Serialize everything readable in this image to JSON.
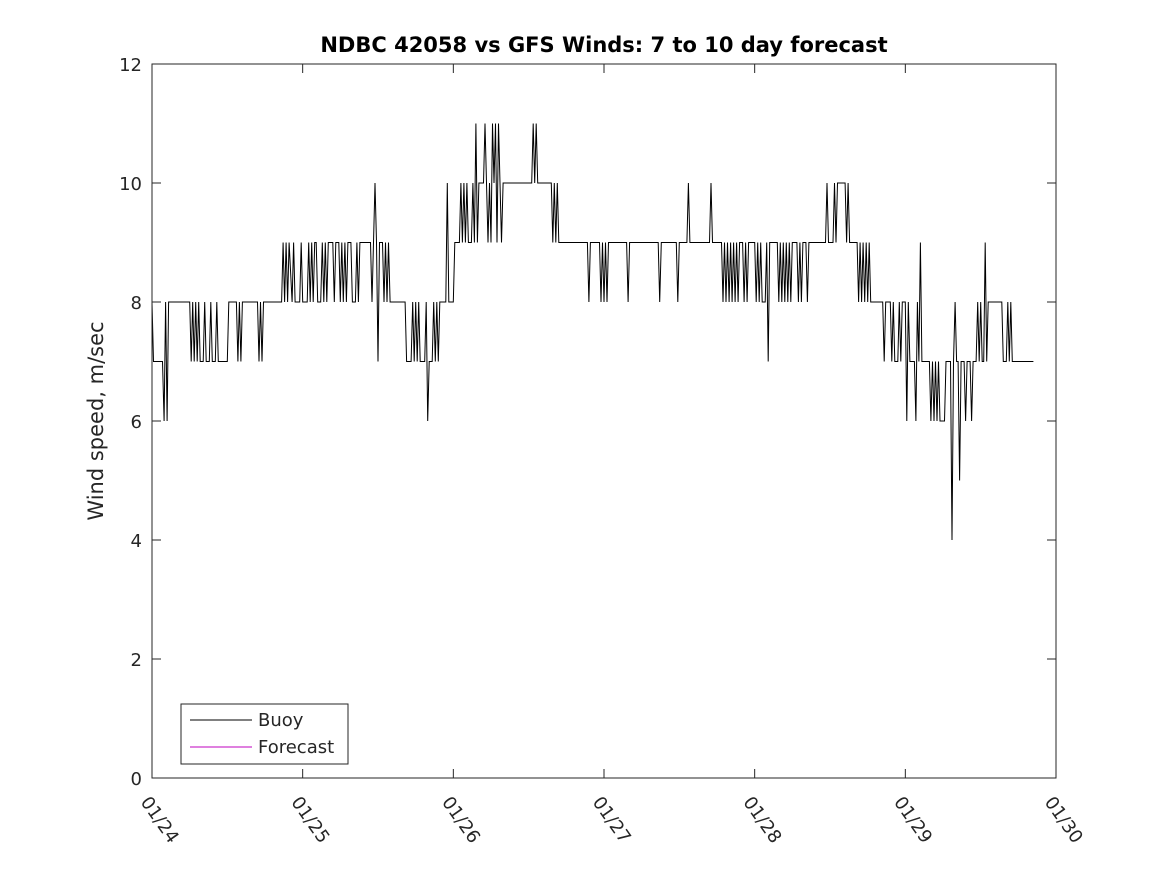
{
  "chart_data": {
    "type": "line",
    "title": "NDBC 42058 vs GFS Winds: 7 to 10 day forecast",
    "xlabel": "",
    "ylabel": "Wind speed, m/sec",
    "xlim": [
      0,
      6
    ],
    "ylim": [
      0,
      12
    ],
    "x_ticks": [
      {
        "value": 0,
        "label": "01/24"
      },
      {
        "value": 1,
        "label": "01/25"
      },
      {
        "value": 2,
        "label": "01/26"
      },
      {
        "value": 3,
        "label": "01/27"
      },
      {
        "value": 4,
        "label": "01/28"
      },
      {
        "value": 5,
        "label": "01/29"
      },
      {
        "value": 6,
        "label": "01/30"
      }
    ],
    "y_ticks": [
      0,
      2,
      4,
      6,
      8,
      10,
      12
    ],
    "grid": false,
    "legend_position": "bottom-left",
    "series": [
      {
        "name": "Buoy",
        "color": "#000000",
        "x_unit": "days since 01/24 00:00",
        "points": [
          [
            0.0,
            8
          ],
          [
            0.01,
            7
          ],
          [
            0.07,
            7
          ],
          [
            0.08,
            6
          ],
          [
            0.09,
            8
          ],
          [
            0.1,
            6
          ],
          [
            0.11,
            8
          ],
          [
            0.14,
            8
          ],
          [
            0.25,
            8
          ],
          [
            0.26,
            7
          ],
          [
            0.27,
            8
          ],
          [
            0.28,
            7
          ],
          [
            0.29,
            8
          ],
          [
            0.3,
            7
          ],
          [
            0.31,
            8
          ],
          [
            0.32,
            7
          ],
          [
            0.34,
            7
          ],
          [
            0.35,
            8
          ],
          [
            0.36,
            7
          ],
          [
            0.38,
            7
          ],
          [
            0.39,
            8
          ],
          [
            0.4,
            7
          ],
          [
            0.42,
            7
          ],
          [
            0.43,
            8
          ],
          [
            0.44,
            7
          ],
          [
            0.5,
            7
          ],
          [
            0.51,
            8
          ],
          [
            0.56,
            8
          ],
          [
            0.57,
            7
          ],
          [
            0.58,
            8
          ],
          [
            0.59,
            7
          ],
          [
            0.6,
            8
          ],
          [
            0.7,
            8
          ],
          [
            0.71,
            7
          ],
          [
            0.72,
            8
          ],
          [
            0.73,
            7
          ],
          [
            0.74,
            8
          ],
          [
            0.86,
            8
          ],
          [
            0.87,
            9
          ],
          [
            0.88,
            8
          ],
          [
            0.89,
            9
          ],
          [
            0.9,
            8
          ],
          [
            0.91,
            9
          ],
          [
            0.93,
            8
          ],
          [
            0.94,
            9
          ],
          [
            0.95,
            8
          ],
          [
            0.98,
            8
          ],
          [
            0.99,
            9
          ],
          [
            1.0,
            8
          ],
          [
            1.03,
            8
          ],
          [
            1.04,
            9
          ],
          [
            1.05,
            8
          ],
          [
            1.06,
            9
          ],
          [
            1.07,
            8
          ],
          [
            1.08,
            9
          ],
          [
            1.09,
            9
          ],
          [
            1.1,
            8
          ],
          [
            1.12,
            8
          ],
          [
            1.13,
            9
          ],
          [
            1.14,
            8
          ],
          [
            1.15,
            9
          ],
          [
            1.16,
            8
          ],
          [
            1.17,
            9
          ],
          [
            1.2,
            9
          ],
          [
            1.21,
            8
          ],
          [
            1.22,
            9
          ],
          [
            1.24,
            9
          ],
          [
            1.25,
            8
          ],
          [
            1.26,
            9
          ],
          [
            1.27,
            8
          ],
          [
            1.28,
            9
          ],
          [
            1.29,
            8
          ],
          [
            1.3,
            9
          ],
          [
            1.32,
            9
          ],
          [
            1.33,
            8
          ],
          [
            1.35,
            8
          ],
          [
            1.36,
            9
          ],
          [
            1.37,
            8
          ],
          [
            1.38,
            9
          ],
          [
            1.45,
            9
          ],
          [
            1.46,
            8
          ],
          [
            1.47,
            9
          ],
          [
            1.48,
            10
          ],
          [
            1.49,
            9
          ],
          [
            1.5,
            7
          ],
          [
            1.51,
            9
          ],
          [
            1.53,
            9
          ],
          [
            1.54,
            8
          ],
          [
            1.55,
            9
          ],
          [
            1.56,
            8
          ],
          [
            1.57,
            9
          ],
          [
            1.58,
            8
          ],
          [
            1.68,
            8
          ],
          [
            1.69,
            7
          ],
          [
            1.72,
            7
          ],
          [
            1.73,
            8
          ],
          [
            1.74,
            7
          ],
          [
            1.75,
            8
          ],
          [
            1.76,
            7
          ],
          [
            1.77,
            8
          ],
          [
            1.78,
            7
          ],
          [
            1.81,
            7
          ],
          [
            1.82,
            8
          ],
          [
            1.83,
            6
          ],
          [
            1.84,
            7
          ],
          [
            1.86,
            7
          ],
          [
            1.87,
            8
          ],
          [
            1.88,
            7
          ],
          [
            1.89,
            8
          ],
          [
            1.9,
            7
          ],
          [
            1.91,
            8
          ],
          [
            1.95,
            8
          ],
          [
            1.96,
            10
          ],
          [
            1.97,
            8
          ],
          [
            2.0,
            8
          ],
          [
            2.01,
            9
          ],
          [
            2.04,
            9
          ],
          [
            2.05,
            10
          ],
          [
            2.06,
            9
          ],
          [
            2.07,
            10
          ],
          [
            2.08,
            9
          ],
          [
            2.09,
            10
          ],
          [
            2.1,
            9
          ],
          [
            2.12,
            9
          ],
          [
            2.13,
            10
          ],
          [
            2.14,
            9
          ],
          [
            2.15,
            11
          ],
          [
            2.16,
            9
          ],
          [
            2.17,
            10
          ],
          [
            2.2,
            10
          ],
          [
            2.21,
            11
          ],
          [
            2.22,
            10
          ],
          [
            2.23,
            9
          ],
          [
            2.24,
            10
          ],
          [
            2.25,
            9
          ],
          [
            2.26,
            11
          ],
          [
            2.27,
            10
          ],
          [
            2.28,
            11
          ],
          [
            2.29,
            9
          ],
          [
            2.3,
            11
          ],
          [
            2.31,
            10
          ],
          [
            2.32,
            9
          ],
          [
            2.33,
            10
          ],
          [
            2.52,
            10
          ],
          [
            2.53,
            11
          ],
          [
            2.54,
            10
          ],
          [
            2.55,
            11
          ],
          [
            2.56,
            10
          ],
          [
            2.65,
            10
          ],
          [
            2.66,
            9
          ],
          [
            2.67,
            10
          ],
          [
            2.68,
            9
          ],
          [
            2.69,
            10
          ],
          [
            2.7,
            9
          ],
          [
            2.89,
            9
          ],
          [
            2.9,
            8
          ],
          [
            2.91,
            9
          ],
          [
            2.97,
            9
          ],
          [
            2.98,
            8
          ],
          [
            2.99,
            9
          ],
          [
            3.0,
            8
          ],
          [
            3.01,
            9
          ],
          [
            3.02,
            8
          ],
          [
            3.03,
            9
          ],
          [
            3.15,
            9
          ],
          [
            3.16,
            8
          ],
          [
            3.17,
            9
          ],
          [
            3.36,
            9
          ],
          [
            3.37,
            8
          ],
          [
            3.38,
            9
          ],
          [
            3.48,
            9
          ],
          [
            3.49,
            8
          ],
          [
            3.5,
            9
          ],
          [
            3.55,
            9
          ],
          [
            3.56,
            10
          ],
          [
            3.57,
            9
          ],
          [
            3.7,
            9
          ],
          [
            3.71,
            10
          ],
          [
            3.72,
            9
          ],
          [
            3.78,
            9
          ],
          [
            3.79,
            8
          ],
          [
            3.8,
            9
          ],
          [
            3.81,
            8
          ],
          [
            3.82,
            9
          ],
          [
            3.83,
            8
          ],
          [
            3.84,
            9
          ],
          [
            3.85,
            8
          ],
          [
            3.86,
            9
          ],
          [
            3.87,
            8
          ],
          [
            3.88,
            9
          ],
          [
            3.89,
            8
          ],
          [
            3.9,
            9
          ],
          [
            3.92,
            9
          ],
          [
            3.93,
            8
          ],
          [
            3.94,
            9
          ],
          [
            3.95,
            8
          ],
          [
            3.96,
            9
          ],
          [
            4.0,
            9
          ],
          [
            4.01,
            8
          ],
          [
            4.02,
            9
          ],
          [
            4.03,
            8
          ],
          [
            4.04,
            9
          ],
          [
            4.05,
            8
          ],
          [
            4.07,
            8
          ],
          [
            4.08,
            9
          ],
          [
            4.09,
            7
          ],
          [
            4.1,
            9
          ],
          [
            4.15,
            9
          ],
          [
            4.16,
            8
          ],
          [
            4.17,
            9
          ],
          [
            4.18,
            8
          ],
          [
            4.19,
            9
          ],
          [
            4.2,
            8
          ],
          [
            4.21,
            9
          ],
          [
            4.22,
            8
          ],
          [
            4.23,
            9
          ],
          [
            4.24,
            8
          ],
          [
            4.25,
            9
          ],
          [
            4.28,
            9
          ],
          [
            4.29,
            8
          ],
          [
            4.3,
            9
          ],
          [
            4.31,
            8
          ],
          [
            4.32,
            9
          ],
          [
            4.34,
            9
          ],
          [
            4.35,
            8
          ],
          [
            4.36,
            9
          ],
          [
            4.47,
            9
          ],
          [
            4.48,
            10
          ],
          [
            4.49,
            9
          ],
          [
            4.52,
            9
          ],
          [
            4.53,
            10
          ],
          [
            4.54,
            9
          ],
          [
            4.55,
            10
          ],
          [
            4.6,
            10
          ],
          [
            4.61,
            9
          ],
          [
            4.62,
            10
          ],
          [
            4.63,
            9
          ],
          [
            4.68,
            9
          ],
          [
            4.69,
            8
          ],
          [
            4.7,
            9
          ],
          [
            4.71,
            8
          ],
          [
            4.72,
            9
          ],
          [
            4.73,
            8
          ],
          [
            4.74,
            9
          ],
          [
            4.75,
            8
          ],
          [
            4.76,
            9
          ],
          [
            4.77,
            8
          ],
          [
            4.85,
            8
          ],
          [
            4.86,
            7
          ],
          [
            4.87,
            8
          ],
          [
            4.88,
            8
          ],
          [
            4.9,
            8
          ],
          [
            4.91,
            7
          ],
          [
            4.92,
            8
          ],
          [
            4.93,
            7
          ],
          [
            4.95,
            7
          ],
          [
            4.96,
            8
          ],
          [
            4.97,
            7
          ],
          [
            4.98,
            8
          ],
          [
            5.0,
            8
          ],
          [
            5.01,
            6
          ],
          [
            5.02,
            8
          ],
          [
            5.03,
            7
          ],
          [
            5.06,
            7
          ],
          [
            5.07,
            6
          ],
          [
            5.08,
            8
          ],
          [
            5.09,
            7
          ],
          [
            5.1,
            9
          ],
          [
            5.11,
            7
          ],
          [
            5.16,
            7
          ],
          [
            5.17,
            6
          ],
          [
            5.18,
            7
          ],
          [
            5.19,
            6
          ],
          [
            5.2,
            7
          ],
          [
            5.21,
            6
          ],
          [
            5.22,
            7
          ],
          [
            5.23,
            6
          ],
          [
            5.26,
            6
          ],
          [
            5.27,
            7
          ],
          [
            5.3,
            7
          ],
          [
            5.31,
            4
          ],
          [
            5.32,
            7
          ],
          [
            5.33,
            8
          ],
          [
            5.34,
            7
          ],
          [
            5.35,
            7
          ],
          [
            5.36,
            5
          ],
          [
            5.37,
            7
          ],
          [
            5.39,
            7
          ],
          [
            5.4,
            6
          ],
          [
            5.41,
            7
          ],
          [
            5.43,
            7
          ],
          [
            5.44,
            6
          ],
          [
            5.45,
            7
          ],
          [
            5.47,
            7
          ],
          [
            5.48,
            8
          ],
          [
            5.49,
            7
          ],
          [
            5.5,
            8
          ],
          [
            5.51,
            7
          ],
          [
            5.52,
            7
          ],
          [
            5.53,
            9
          ],
          [
            5.54,
            7
          ],
          [
            5.55,
            8
          ],
          [
            5.64,
            8
          ],
          [
            5.65,
            7
          ],
          [
            5.67,
            7
          ],
          [
            5.68,
            8
          ],
          [
            5.69,
            7
          ],
          [
            5.7,
            8
          ],
          [
            5.71,
            7
          ],
          [
            5.85,
            7
          ]
        ]
      },
      {
        "name": "Forecast",
        "color": "#bf00bf",
        "points": []
      }
    ]
  }
}
